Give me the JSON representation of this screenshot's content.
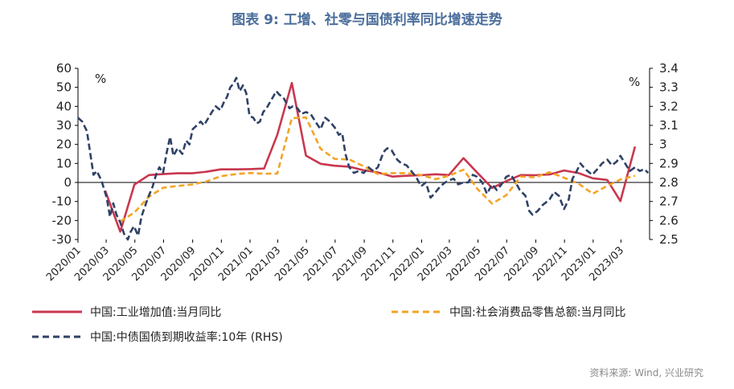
{
  "title": "图表 9:  工增、社零与国债利率同比增速走势",
  "source": "资料来源:  Wind, 兴业研究",
  "chart_data": {
    "type": "line",
    "left_unit": "%",
    "right_unit": "%",
    "left_axis": {
      "min": -30,
      "max": 60,
      "ticks": [
        -30,
        -20,
        -10,
        0,
        10,
        20,
        30,
        40,
        50,
        60
      ]
    },
    "right_axis": {
      "min": 2.5,
      "max": 3.4,
      "ticks": [
        "2.5",
        "2.6",
        "2.7",
        "2.8",
        "2.9",
        "3",
        "3.1",
        "3.2",
        "3.3",
        "3.4"
      ]
    },
    "x_ticks": [
      "2020/01",
      "2020/03",
      "2020/05",
      "2020/07",
      "2020/09",
      "2020/11",
      "2021/01",
      "2021/03",
      "2021/05",
      "2021/07",
      "2021/09",
      "2021/11",
      "2022/01",
      "2022/03",
      "2022/05",
      "2022/07",
      "2022/09",
      "2022/11",
      "2023/01",
      "2023/03"
    ],
    "x_range": [
      "2020-01-01",
      "2023-05-01"
    ],
    "legend": [
      {
        "label": "中国:工业增加值:当月同比",
        "color": "#c9374f",
        "style": "solid"
      },
      {
        "label": "中国:社会消费品零售总额:当月同比",
        "color": "#f3a426",
        "style": "dashed"
      },
      {
        "label": "中国:中债国债到期收益率:10年 (RHS)",
        "color": "#2f4266",
        "style": "dashed"
      }
    ],
    "series": [
      {
        "name": "中国:工业增加值:当月同比",
        "axis": "left",
        "color": "#c9374f",
        "points": [
          [
            "2020-02-28",
            -4.3
          ],
          [
            "2020-03-31",
            -25.9
          ],
          [
            "2020-04-30",
            -1.1
          ],
          [
            "2020-05-31",
            3.9
          ],
          [
            "2020-06-30",
            4.4
          ],
          [
            "2020-07-31",
            4.8
          ],
          [
            "2020-08-31",
            4.8
          ],
          [
            "2020-09-30",
            5.6
          ],
          [
            "2020-10-31",
            6.9
          ],
          [
            "2020-11-30",
            6.9
          ],
          [
            "2020-12-31",
            7.0
          ],
          [
            "2021-01-31",
            7.3
          ],
          [
            "2021-02-28",
            25.0
          ],
          [
            "2021-03-31",
            52.3
          ],
          [
            "2021-04-30",
            14.1
          ],
          [
            "2021-05-31",
            9.8
          ],
          [
            "2021-06-30",
            8.8
          ],
          [
            "2021-07-31",
            8.3
          ],
          [
            "2021-08-31",
            6.4
          ],
          [
            "2021-09-30",
            5.3
          ],
          [
            "2021-10-31",
            3.1
          ],
          [
            "2021-11-30",
            3.5
          ],
          [
            "2021-12-31",
            3.8
          ],
          [
            "2022-01-31",
            4.3
          ],
          [
            "2022-02-28",
            3.9
          ],
          [
            "2022-03-31",
            12.8
          ],
          [
            "2022-04-30",
            5.0
          ],
          [
            "2022-05-31",
            -2.9
          ],
          [
            "2022-06-30",
            0.7
          ],
          [
            "2022-07-31",
            3.9
          ],
          [
            "2022-08-31",
            3.8
          ],
          [
            "2022-09-30",
            4.2
          ],
          [
            "2022-10-31",
            6.3
          ],
          [
            "2022-11-30",
            5.0
          ],
          [
            "2022-12-31",
            2.2
          ],
          [
            "2023-01-31",
            1.3
          ],
          [
            "2023-02-28",
            -9.8
          ],
          [
            "2023-03-31",
            18.9
          ]
        ]
      },
      {
        "name": "中国:社会消费品零售总额:当月同比",
        "axis": "left",
        "color": "#f3a426",
        "points": [
          [
            "2020-03-31",
            -20.5
          ],
          [
            "2020-04-30",
            -15.8
          ],
          [
            "2020-05-31",
            -7.5
          ],
          [
            "2020-06-30",
            -2.8
          ],
          [
            "2020-07-31",
            -1.8
          ],
          [
            "2020-08-31",
            -1.1
          ],
          [
            "2020-09-30",
            0.5
          ],
          [
            "2020-10-31",
            3.3
          ],
          [
            "2020-11-30",
            4.3
          ],
          [
            "2020-12-31",
            5.0
          ],
          [
            "2021-01-31",
            4.6
          ],
          [
            "2021-02-28",
            4.6
          ],
          [
            "2021-03-31",
            33.8
          ],
          [
            "2021-04-30",
            34.2
          ],
          [
            "2021-05-31",
            17.7
          ],
          [
            "2021-06-30",
            12.4
          ],
          [
            "2021-07-31",
            12.1
          ],
          [
            "2021-08-31",
            8.5
          ],
          [
            "2021-09-30",
            4.4
          ],
          [
            "2021-10-31",
            4.9
          ],
          [
            "2021-11-30",
            4.9
          ],
          [
            "2021-12-31",
            3.9
          ],
          [
            "2022-01-31",
            1.7
          ],
          [
            "2022-02-28",
            3.5
          ],
          [
            "2022-03-31",
            6.7
          ],
          [
            "2022-04-30",
            -3.5
          ],
          [
            "2022-05-31",
            -11.1
          ],
          [
            "2022-06-30",
            -6.7
          ],
          [
            "2022-07-31",
            3.1
          ],
          [
            "2022-08-31",
            2.7
          ],
          [
            "2022-09-30",
            5.4
          ],
          [
            "2022-10-31",
            2.5
          ],
          [
            "2022-11-30",
            -0.5
          ],
          [
            "2022-12-31",
            -5.9
          ],
          [
            "2023-01-31",
            -1.8
          ],
          [
            "2023-02-28",
            1.5
          ],
          [
            "2023-03-31",
            3.5
          ]
        ]
      },
      {
        "name": "中国:中债国债到期收益率:10年 (RHS)",
        "axis": "right",
        "color": "#2f4266",
        "points": [
          [
            "2020-01-01",
            3.14
          ],
          [
            "2020-01-10",
            3.12
          ],
          [
            "2020-01-20",
            3.07
          ],
          [
            "2020-02-03",
            2.84
          ],
          [
            "2020-02-10",
            2.86
          ],
          [
            "2020-02-20",
            2.81
          ],
          [
            "2020-03-02",
            2.72
          ],
          [
            "2020-03-09",
            2.62
          ],
          [
            "2020-03-16",
            2.69
          ],
          [
            "2020-03-23",
            2.63
          ],
          [
            "2020-03-31",
            2.59
          ],
          [
            "2020-04-08",
            2.53
          ],
          [
            "2020-04-16",
            2.5
          ],
          [
            "2020-04-22",
            2.54
          ],
          [
            "2020-04-29",
            2.57
          ],
          [
            "2020-05-08",
            2.52
          ],
          [
            "2020-05-15",
            2.62
          ],
          [
            "2020-05-22",
            2.67
          ],
          [
            "2020-05-29",
            2.72
          ],
          [
            "2020-06-08",
            2.78
          ],
          [
            "2020-06-15",
            2.84
          ],
          [
            "2020-06-22",
            2.88
          ],
          [
            "2020-06-30",
            2.85
          ],
          [
            "2020-07-08",
            2.96
          ],
          [
            "2020-07-15",
            3.04
          ],
          [
            "2020-07-22",
            2.94
          ],
          [
            "2020-07-31",
            2.98
          ],
          [
            "2020-08-10",
            2.95
          ],
          [
            "2020-08-18",
            3.02
          ],
          [
            "2020-08-25",
            3.0
          ],
          [
            "2020-09-01",
            3.08
          ],
          [
            "2020-09-10",
            3.1
          ],
          [
            "2020-09-18",
            3.12
          ],
          [
            "2020-09-25",
            3.1
          ],
          [
            "2020-10-12",
            3.17
          ],
          [
            "2020-10-20",
            3.2
          ],
          [
            "2020-10-30",
            3.18
          ],
          [
            "2020-11-06",
            3.22
          ],
          [
            "2020-11-13",
            3.25
          ],
          [
            "2020-11-20",
            3.3
          ],
          [
            "2020-11-27",
            3.32
          ],
          [
            "2020-12-03",
            3.35
          ],
          [
            "2020-12-10",
            3.28
          ],
          [
            "2020-12-17",
            3.31
          ],
          [
            "2020-12-24",
            3.27
          ],
          [
            "2020-12-31",
            3.15
          ],
          [
            "2021-01-08",
            3.14
          ],
          [
            "2021-01-15",
            3.11
          ],
          [
            "2021-01-22",
            3.12
          ],
          [
            "2021-01-29",
            3.17
          ],
          [
            "2021-02-05",
            3.19
          ],
          [
            "2021-02-19",
            3.25
          ],
          [
            "2021-02-26",
            3.28
          ],
          [
            "2021-03-05",
            3.26
          ],
          [
            "2021-03-12",
            3.25
          ],
          [
            "2021-03-19",
            3.22
          ],
          [
            "2021-03-26",
            3.19
          ],
          [
            "2021-04-02",
            3.2
          ],
          [
            "2021-04-12",
            3.19
          ],
          [
            "2021-04-20",
            3.16
          ],
          [
            "2021-04-30",
            3.17
          ],
          [
            "2021-05-10",
            3.16
          ],
          [
            "2021-05-20",
            3.12
          ],
          [
            "2021-05-31",
            3.08
          ],
          [
            "2021-06-10",
            3.14
          ],
          [
            "2021-06-20",
            3.12
          ],
          [
            "2021-06-30",
            3.09
          ],
          [
            "2021-07-09",
            3.05
          ],
          [
            "2021-07-16",
            3.06
          ],
          [
            "2021-07-23",
            2.95
          ],
          [
            "2021-07-31",
            2.88
          ],
          [
            "2021-08-10",
            2.85
          ],
          [
            "2021-08-20",
            2.86
          ],
          [
            "2021-08-31",
            2.85
          ],
          [
            "2021-09-10",
            2.88
          ],
          [
            "2021-09-20",
            2.86
          ],
          [
            "2021-09-30",
            2.88
          ],
          [
            "2021-10-12",
            2.96
          ],
          [
            "2021-10-20",
            2.98
          ],
          [
            "2021-10-29",
            2.97
          ],
          [
            "2021-11-10",
            2.92
          ],
          [
            "2021-11-19",
            2.9
          ],
          [
            "2021-11-30",
            2.89
          ],
          [
            "2021-12-10",
            2.86
          ],
          [
            "2021-12-20",
            2.83
          ],
          [
            "2021-12-31",
            2.78
          ],
          [
            "2022-01-10",
            2.8
          ],
          [
            "2022-01-20",
            2.72
          ],
          [
            "2022-01-28",
            2.74
          ],
          [
            "2022-02-10",
            2.78
          ],
          [
            "2022-02-20",
            2.8
          ],
          [
            "2022-02-28",
            2.81
          ],
          [
            "2022-03-10",
            2.82
          ],
          [
            "2022-03-20",
            2.79
          ],
          [
            "2022-03-31",
            2.8
          ],
          [
            "2022-04-10",
            2.8
          ],
          [
            "2022-04-20",
            2.84
          ],
          [
            "2022-04-29",
            2.83
          ],
          [
            "2022-05-10",
            2.8
          ],
          [
            "2022-05-20",
            2.74
          ],
          [
            "2022-05-31",
            2.79
          ],
          [
            "2022-06-10",
            2.76
          ],
          [
            "2022-06-20",
            2.79
          ],
          [
            "2022-06-30",
            2.83
          ],
          [
            "2022-07-10",
            2.84
          ],
          [
            "2022-07-20",
            2.8
          ],
          [
            "2022-07-29",
            2.76
          ],
          [
            "2022-08-10",
            2.73
          ],
          [
            "2022-08-18",
            2.65
          ],
          [
            "2022-08-25",
            2.63
          ],
          [
            "2022-09-05",
            2.65
          ],
          [
            "2022-09-15",
            2.68
          ],
          [
            "2022-09-30",
            2.71
          ],
          [
            "2022-10-10",
            2.75
          ],
          [
            "2022-10-20",
            2.73
          ],
          [
            "2022-10-31",
            2.66
          ],
          [
            "2022-11-10",
            2.71
          ],
          [
            "2022-11-18",
            2.82
          ],
          [
            "2022-11-25",
            2.85
          ],
          [
            "2022-12-05",
            2.9
          ],
          [
            "2022-12-15",
            2.87
          ],
          [
            "2022-12-30",
            2.84
          ],
          [
            "2023-01-10",
            2.87
          ],
          [
            "2023-01-20",
            2.9
          ],
          [
            "2023-01-31",
            2.92
          ],
          [
            "2023-02-10",
            2.89
          ],
          [
            "2023-02-20",
            2.91
          ],
          [
            "2023-02-28",
            2.94
          ],
          [
            "2023-03-10",
            2.9
          ],
          [
            "2023-03-20",
            2.86
          ],
          [
            "2023-03-31",
            2.88
          ],
          [
            "2023-04-10",
            2.86
          ],
          [
            "2023-04-20",
            2.87
          ],
          [
            "2023-04-28",
            2.85
          ]
        ]
      }
    ]
  }
}
